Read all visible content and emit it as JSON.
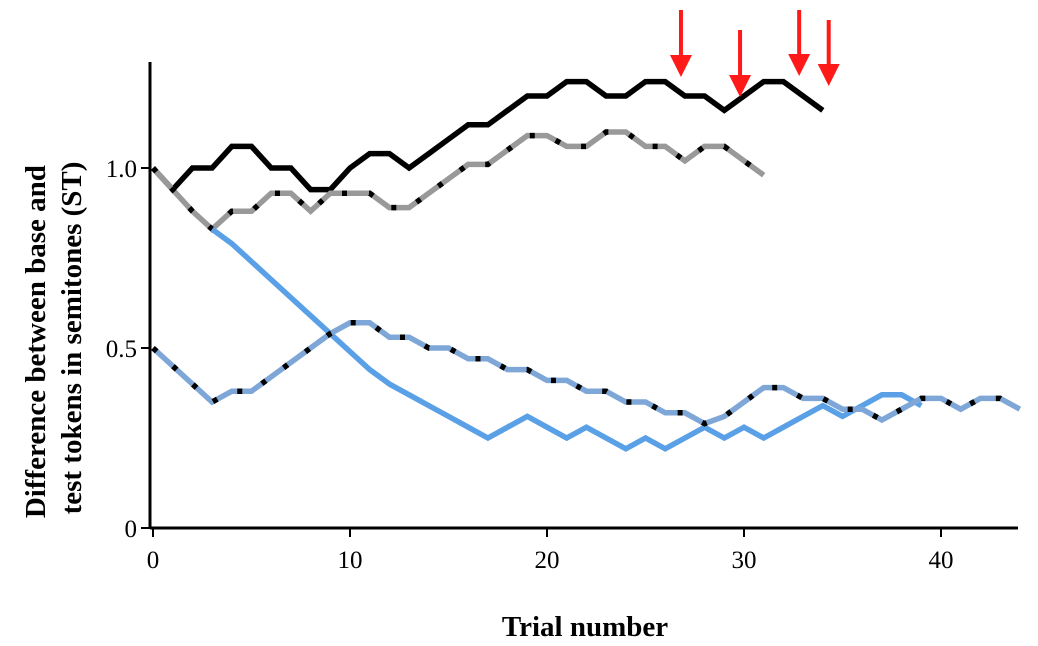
{
  "chart_data": {
    "type": "line",
    "xlabel": "Trial number",
    "ylabel_lines": [
      "Difference between base and",
      "test tokens in semitones (ST)"
    ],
    "xlim": [
      0,
      44
    ],
    "ylim": [
      0,
      1.3
    ],
    "xticks": [
      0,
      10,
      20,
      30,
      40
    ],
    "xtick_labels": [
      "0",
      "10",
      "20",
      "30",
      "40"
    ],
    "yticks": [
      0,
      0.5,
      1.0
    ],
    "ytick_labels": [
      "0",
      "0.5",
      "1.0"
    ],
    "grid": false,
    "legend": "none",
    "series": [
      {
        "color": "#000000",
        "dash": "solid",
        "x": [
          0,
          1,
          2,
          3,
          4,
          5,
          6,
          7,
          8,
          9,
          10,
          11,
          12,
          13,
          14,
          15,
          16,
          17,
          18,
          19,
          20,
          21,
          22,
          23,
          24,
          25,
          26,
          27,
          28,
          29,
          30,
          31,
          32,
          33,
          34
        ],
        "y": [
          1.0,
          0.94,
          1.0,
          1.0,
          1.06,
          1.06,
          1.0,
          1.0,
          0.94,
          0.94,
          1.0,
          1.04,
          1.04,
          1.0,
          1.04,
          1.08,
          1.12,
          1.12,
          1.16,
          1.2,
          1.2,
          1.24,
          1.24,
          1.2,
          1.2,
          1.24,
          1.24,
          1.2,
          1.2,
          1.16,
          1.2,
          1.24,
          1.24,
          1.2,
          null
        ]
      },
      {
        "color": "#999999",
        "dash": "black-dotted",
        "x": [
          0,
          1,
          2,
          3,
          4,
          5,
          6,
          7,
          8,
          9,
          10,
          11,
          12,
          13,
          14,
          15,
          16,
          17,
          18,
          19,
          20,
          21,
          22,
          23,
          24,
          25,
          26,
          27,
          28,
          29,
          30,
          31
        ],
        "y": [
          1.0,
          0.94,
          0.88,
          0.83,
          0.88,
          0.88,
          0.93,
          0.93,
          0.88,
          0.93,
          0.93,
          0.93,
          0.89,
          0.89,
          0.93,
          0.97,
          1.01,
          1.01,
          1.05,
          1.09,
          1.09,
          1.06,
          1.06,
          1.1,
          1.1,
          1.06,
          1.06,
          1.02,
          1.06,
          1.06,
          1.02,
          null
        ]
      },
      {
        "color": "#5aa0e6",
        "dash": "solid",
        "x": [
          3,
          4,
          5,
          6,
          7,
          8,
          9,
          10,
          11,
          12,
          13,
          14,
          15,
          16,
          17,
          18,
          19,
          20,
          21,
          22,
          23,
          24,
          25,
          26,
          27,
          28,
          29,
          30,
          31,
          32,
          33,
          34,
          35,
          36,
          37,
          38,
          39
        ],
        "y": [
          0.83,
          0.79,
          0.74,
          0.69,
          0.64,
          0.59,
          0.54,
          0.49,
          0.44,
          0.4,
          0.37,
          0.34,
          0.31,
          0.28,
          0.25,
          0.28,
          0.31,
          0.28,
          0.25,
          0.28,
          0.25,
          0.22,
          0.25,
          0.22,
          0.25,
          0.28,
          0.25,
          0.28,
          0.25,
          0.28,
          0.31,
          0.34,
          0.31,
          0.34,
          0.37,
          0.37,
          0.34
        ]
      },
      {
        "color": "#7ea7d8",
        "dash": "black-dotted",
        "x": [
          0,
          1,
          2,
          3,
          4,
          5,
          6,
          7,
          8,
          9,
          10,
          11,
          12,
          13,
          14,
          15,
          16,
          17,
          18,
          19,
          20,
          21,
          22,
          23,
          24,
          25,
          26,
          27,
          28,
          29,
          30,
          31,
          32,
          33,
          34,
          35,
          36,
          37,
          38,
          39,
          40,
          41,
          42,
          43,
          44
        ],
        "y": [
          0.5,
          0.45,
          0.4,
          0.35,
          0.38,
          0.38,
          0.42,
          0.46,
          0.5,
          0.54,
          0.57,
          0.57,
          0.53,
          0.53,
          0.5,
          0.5,
          0.47,
          0.47,
          0.44,
          0.44,
          0.41,
          0.41,
          0.38,
          0.38,
          0.35,
          0.35,
          0.32,
          0.32,
          0.29,
          0.31,
          0.35,
          0.39,
          0.39,
          0.36,
          0.36,
          0.33,
          0.33,
          0.3,
          0.33,
          0.36,
          0.36,
          0.33,
          0.36,
          0.36,
          0.33
        ]
      }
    ],
    "annotations": [
      {
        "type": "arrow",
        "color": "#ff1a1a",
        "x": 26.8,
        "direction": "down"
      },
      {
        "type": "arrow",
        "color": "#ff1a1a",
        "x": 29.8,
        "direction": "down"
      },
      {
        "type": "arrow",
        "color": "#ff1a1a",
        "x": 32.8,
        "direction": "down"
      },
      {
        "type": "arrow",
        "color": "#ff1a1a",
        "x": 34.3,
        "direction": "down"
      }
    ]
  }
}
